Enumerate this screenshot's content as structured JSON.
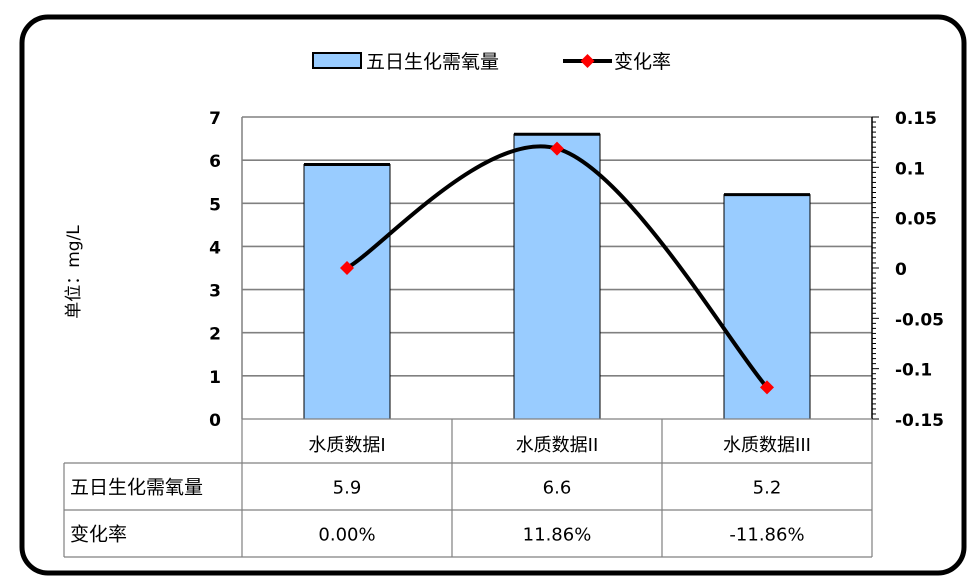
{
  "chart_data": {
    "type": "bar+line",
    "categories": [
      "水质数据I",
      "水质数据II",
      "水质数据III"
    ],
    "series": [
      {
        "name": "五日生化需氧量",
        "type": "bar",
        "axis": "left",
        "values": [
          5.9,
          6.6,
          5.2
        ],
        "color": "#99CCFF"
      },
      {
        "name": "变化率",
        "type": "line",
        "axis": "right",
        "values": [
          0.0,
          0.1186,
          -0.1186
        ],
        "color": "#000000",
        "marker_color": "#FF0000"
      }
    ],
    "ylabel": "单位：mg/L",
    "ylim": [
      0,
      7
    ],
    "yticks": [
      "0",
      "1",
      "2",
      "3",
      "4",
      "5",
      "6",
      "7"
    ],
    "y2lim": [
      -0.15,
      0.15
    ],
    "y2ticks": [
      "0.15",
      "0.1",
      "0.05",
      "0",
      "-0.05",
      "-0.1",
      "-0.15"
    ],
    "grid": true,
    "legend_position": "top-center",
    "data_table": {
      "rows": [
        {
          "label": "五日生化需氧量",
          "cells": [
            "5.9",
            "6.6",
            "5.2"
          ]
        },
        {
          "label": "变化率",
          "cells": [
            "0.00%",
            "11.86%",
            "-11.86%"
          ]
        }
      ]
    }
  }
}
